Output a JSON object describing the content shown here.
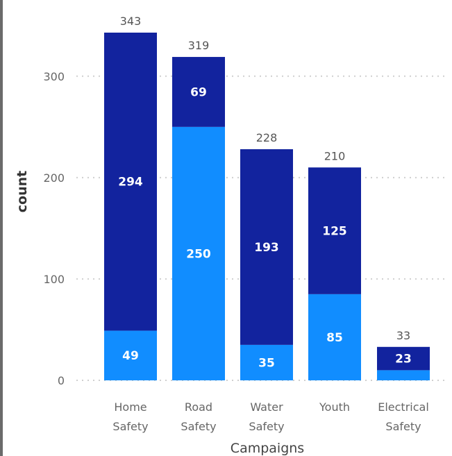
{
  "chart_data": {
    "type": "bar",
    "stacked": true,
    "title": "",
    "xlabel": "Campaigns",
    "ylabel": "count",
    "ylim": [
      0,
      343
    ],
    "yticks": [
      0,
      100,
      200,
      300
    ],
    "grid": true,
    "categories": [
      [
        "Home",
        "Safety"
      ],
      [
        "Road",
        "Safety"
      ],
      [
        "Water",
        "Safety"
      ],
      [
        "Youth"
      ],
      [
        "Electrical",
        "Safety"
      ]
    ],
    "totals": [
      343,
      319,
      228,
      210,
      33
    ],
    "series": [
      {
        "color": "#118dff",
        "values": [
          49,
          250,
          35,
          85,
          10
        ],
        "labels": [
          "49",
          "250",
          "35",
          "85",
          ""
        ]
      },
      {
        "color": "#12239e",
        "values": [
          294,
          69,
          193,
          125,
          23
        ],
        "labels": [
          "294",
          "69",
          "193",
          "125",
          "23"
        ]
      }
    ]
  }
}
